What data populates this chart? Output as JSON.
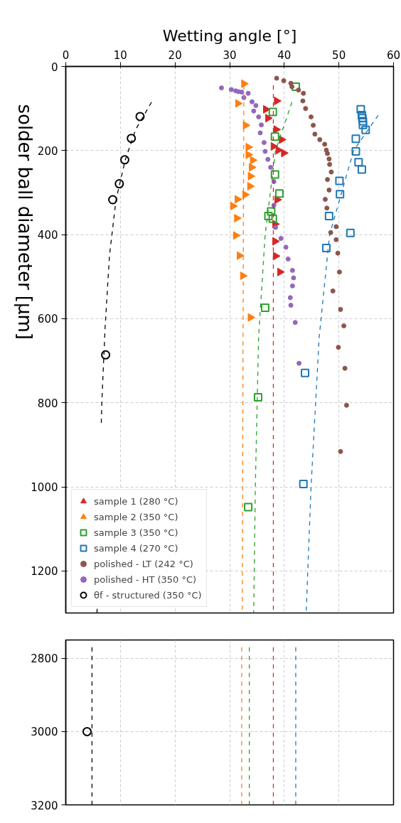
{
  "chart_data": [
    {
      "type": "scatter",
      "xlabel": "Wetting angle [°]",
      "ylabel": "solder ball diameter [µm]",
      "xlim": [
        0,
        60
      ],
      "xticks": [
        0,
        10,
        20,
        30,
        40,
        50,
        60
      ],
      "ylim": [
        1300,
        0
      ],
      "yticks": [
        0,
        200,
        400,
        600,
        800,
        1000,
        1200
      ],
      "grid": true,
      "legend": "bottom left",
      "series": [
        {
          "name": "sample 1 (280 °C)",
          "color": "#d62728",
          "marker": "triangle",
          "x": [
            38.6,
            36.6,
            37.0,
            38.5,
            39.5,
            38.0,
            38.9,
            39.9,
            38.7,
            38.3,
            38.3,
            38.4,
            39.2
          ],
          "values": [
            82,
            102,
            123,
            150,
            174,
            190,
            199,
            206,
            317,
            375,
            416,
            451,
            489
          ]
        },
        {
          "name": "sample 2 (350 °C)",
          "color": "#ff7f0e",
          "marker": "triangle",
          "x": [
            32.6,
            31.5,
            32.9,
            33.4,
            33.4,
            34.2,
            34.0,
            33.8,
            33.7,
            32.8,
            31.4,
            30.6,
            31.3,
            31.1,
            31.8,
            32.4,
            33.8
          ],
          "values": [
            41,
            88,
            140,
            192,
            210,
            223,
            240,
            261,
            285,
            305,
            316,
            332,
            361,
            402,
            450,
            498,
            597
          ]
        },
        {
          "name": "sample 3 (350 °C)",
          "color": "#2ca02c",
          "marker": "square",
          "x": [
            42.1,
            37.9,
            38.3,
            38.3,
            39.1,
            37.6,
            37.1,
            37.9,
            36.5,
            35.2,
            33.4
          ],
          "values": [
            48,
            108,
            167,
            257,
            302,
            345,
            356,
            362,
            574,
            787,
            1048
          ]
        },
        {
          "name": "sample 4 (270 °C)",
          "color": "#1f77b4",
          "marker": "square",
          "x": [
            54.0,
            54.2,
            54.3,
            54.4,
            54.4,
            54.9,
            53.1,
            53.1,
            53.6,
            54.2,
            50.1,
            50.2,
            48.2,
            52.1,
            47.7,
            43.8,
            43.5
          ],
          "values": [
            102,
            116,
            123,
            130,
            139,
            151,
            172,
            202,
            228,
            245,
            272,
            304,
            356,
            396,
            432,
            729,
            993
          ]
        },
        {
          "name": "polished - LT (242 °C)",
          "color": "#8c564b",
          "marker": "circle",
          "x": [
            38.6,
            39.9,
            41.2,
            41.4,
            42.6,
            43.5,
            43.4,
            43.9,
            44.9,
            45.3,
            45.6,
            46.5,
            47.4,
            47.7,
            47.9,
            48.2,
            48.3,
            48.6,
            47.9,
            48.2,
            47.5,
            47.8,
            49.5,
            48.5,
            49.5,
            49.8,
            50.1,
            48.9,
            50.3,
            50.9,
            49.9,
            51.1,
            51.4,
            50.3
          ],
          "values": [
            28,
            34,
            40,
            48,
            56,
            64,
            82,
            100,
            120,
            140,
            161,
            174,
            185,
            199,
            207,
            220,
            233,
            251,
            269,
            294,
            316,
            337,
            381,
            395,
            412,
            444,
            489,
            534,
            578,
            617,
            668,
            718,
            806,
            916
          ]
        },
        {
          "name": "polished - HT (350 °C)",
          "color": "#9467bd",
          "marker": "circle",
          "x": [
            28.5,
            30.3,
            31.1,
            31.6,
            32.2,
            33.4,
            32.6,
            34.1,
            34.8,
            34.4,
            35.3,
            35.8,
            35.6,
            36.3,
            36.5,
            37.0,
            37.5,
            38.1,
            38.1,
            38.4,
            39.4,
            40.3,
            40.7,
            41.5,
            41.7,
            41.5,
            41.1,
            41.2,
            42.0,
            42.7
          ],
          "values": [
            51,
            55,
            58,
            60,
            61,
            64,
            74,
            84,
            93,
            106,
            120,
            139,
            158,
            181,
            202,
            221,
            240,
            274,
            330,
            383,
            409,
            430,
            458,
            485,
            503,
            522,
            550,
            568,
            609,
            706
          ]
        },
        {
          "name": "θf - structured (350 °C)",
          "color": "#000000",
          "marker": "circle",
          "x": [
            13.6,
            12.0,
            10.8,
            9.8,
            8.6,
            7.3
          ],
          "values": [
            119,
            171,
            222,
            279,
            317,
            686
          ]
        },
        {
          "type": "line",
          "color": "#d62728",
          "line_style": "dashed",
          "x": [
            38.0,
            38.0
          ],
          "values": [
            45,
            1300
          ]
        },
        {
          "type": "line",
          "color": "#ff7f0e",
          "line_style": "dashed",
          "x": [
            32.6,
            32.3
          ],
          "values": [
            45,
            1300
          ]
        },
        {
          "type": "line",
          "color": "#2ca02c",
          "line_style": "dashed",
          "x": [
            41.4,
            38.4,
            36.5,
            35.3,
            34.7,
            34.4
          ],
          "values": [
            85,
            200,
            400,
            642,
            1000,
            1300
          ]
        },
        {
          "type": "line",
          "color": "#1f77b4",
          "line_style": "dashed",
          "x": [
            57.2,
            52.7,
            48.3,
            46.4,
            44.9,
            44.0
          ],
          "values": [
            116,
            200,
            400,
            642,
            1000,
            1300
          ]
        },
        {
          "type": "line",
          "color": "#000000",
          "line_style": "dashed",
          "x": [
            15.7,
            12.8,
            10.9,
            9.2,
            8.0,
            7.2,
            6.6,
            6.5,
            null,
            5.75,
            5.7
          ],
          "values": [
            85,
            150,
            222,
            317,
            450,
            621,
            800,
            850,
            null,
            1290,
            1300
          ]
        }
      ]
    },
    {
      "type": "scatter",
      "xlim": [
        0,
        60
      ],
      "xticks": [
        0,
        10,
        20,
        30,
        40,
        50,
        60
      ],
      "ylim": [
        3200,
        2750
      ],
      "yticks": [
        2800,
        3000,
        3200
      ],
      "grid": true,
      "tick_labels": "y",
      "series": [
        {
          "color": "#000000",
          "marker": "circle",
          "x": [
            3.9
          ],
          "values": [
            3000
          ]
        },
        {
          "type": "line",
          "color": "#000000",
          "line_style": "dashed",
          "x": [
            4.8,
            4.8
          ],
          "values": [
            2770,
            3200
          ]
        },
        {
          "type": "line",
          "color": "#ff7f0e",
          "line_style": "dashed",
          "x": [
            32.2,
            32.2
          ],
          "values": [
            2770,
            3200
          ]
        },
        {
          "type": "line",
          "color": "#2ca02c",
          "line_style": "dashed",
          "x": [
            33.6,
            33.6
          ],
          "values": [
            2770,
            3200
          ]
        },
        {
          "type": "line",
          "color": "#d62728",
          "line_style": "dashed",
          "x": [
            38.0,
            38.0
          ],
          "values": [
            2770,
            3200
          ]
        },
        {
          "type": "line",
          "color": "#1f77b4",
          "line_style": "dashed",
          "x": [
            42.1,
            42.1
          ],
          "values": [
            2770,
            3200
          ]
        }
      ]
    }
  ]
}
